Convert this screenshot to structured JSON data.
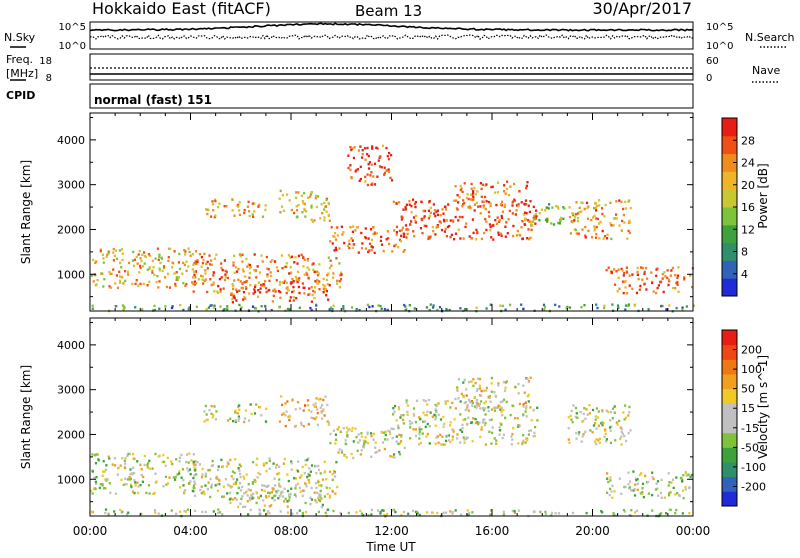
{
  "header": {
    "station": "Hokkaido East (fitACF)",
    "beam": "Beam 13",
    "date": "30/Apr/2017"
  },
  "top_panels": {
    "nsky_label": "N.Sky",
    "nsky_ticks": [
      "10^5",
      "10^0"
    ],
    "nsearch_label": "N.Search",
    "nsearch_ticks": [
      "10^5",
      "10^0"
    ],
    "freq_label": "Freq.",
    "freq_unit": "[MHz]",
    "freq_ticks": [
      "18",
      "8"
    ],
    "nave_label": "Nave",
    "nave_ticks": [
      "60",
      "0"
    ],
    "cpid_label": "CPID",
    "cpid_value": "normal (fast) 151"
  },
  "chart_data": [
    {
      "type": "heatmap",
      "title": "",
      "xlabel": "",
      "ylabel": "Slant Range [km]",
      "xlim": [
        0,
        24
      ],
      "ylim": [
        180,
        4600
      ],
      "y_ticks": [
        1000,
        2000,
        3000,
        4000
      ],
      "colorbar": {
        "label": "Power [dB]",
        "ticks": [
          "4",
          "8",
          "12",
          "16",
          "20",
          "24",
          "28"
        ],
        "colors": [
          "#1f2bd8",
          "#2f62b8",
          "#2f8f6a",
          "#3da23a",
          "#7ec43a",
          "#c8c832",
          "#f0b428",
          "#f08c1e",
          "#f05014",
          "#e81e14"
        ]
      },
      "scatter_regions": [
        {
          "t0": 0.0,
          "t1": 4.2,
          "r0": 700,
          "r1": 1600,
          "level": 0.65
        },
        {
          "t0": 4.0,
          "t1": 8.5,
          "r0": 600,
          "r1": 1500,
          "level": 0.75
        },
        {
          "t0": 5.5,
          "t1": 9.5,
          "r0": 400,
          "r1": 900,
          "level": 0.85
        },
        {
          "t0": 8.5,
          "t1": 10.0,
          "r0": 700,
          "r1": 1400,
          "level": 0.7
        },
        {
          "t0": 9.5,
          "t1": 12.5,
          "r0": 1500,
          "r1": 2100,
          "level": 0.85
        },
        {
          "t0": 10.2,
          "t1": 12.0,
          "r0": 3000,
          "r1": 3900,
          "level": 0.9
        },
        {
          "t0": 12.0,
          "t1": 17.8,
          "r0": 1800,
          "r1": 2700,
          "level": 0.9
        },
        {
          "t0": 14.5,
          "t1": 17.5,
          "r0": 2500,
          "r1": 3100,
          "level": 0.8
        },
        {
          "t0": 17.5,
          "t1": 19.2,
          "r0": 2100,
          "r1": 2600,
          "level": 0.5
        },
        {
          "t0": 19.0,
          "t1": 21.5,
          "r0": 1800,
          "r1": 2700,
          "level": 0.7
        },
        {
          "t0": 20.5,
          "t1": 24.0,
          "r0": 600,
          "r1": 1200,
          "level": 0.8
        },
        {
          "t0": 0.0,
          "t1": 24.0,
          "r0": 200,
          "r1": 350,
          "level": 0.3
        },
        {
          "t0": 7.5,
          "t1": 9.5,
          "r0": 2200,
          "r1": 2900,
          "level": 0.6
        },
        {
          "t0": 4.5,
          "t1": 7.0,
          "r0": 2300,
          "r1": 2700,
          "level": 0.7
        }
      ]
    },
    {
      "type": "heatmap",
      "title": "",
      "xlabel": "Time UT",
      "ylabel": "Slant Range [km]",
      "xlim": [
        0,
        24
      ],
      "ylim": [
        180,
        4600
      ],
      "y_ticks": [
        1000,
        2000,
        3000,
        4000
      ],
      "x_ticks": [
        "00:00",
        "04:00",
        "08:00",
        "12:00",
        "16:00",
        "20:00",
        "00:00"
      ],
      "colorbar": {
        "label": "Velocity [m s^-1]",
        "ticks": [
          "200",
          "100",
          "50",
          "15",
          "-15",
          "-50",
          "-100",
          "-200"
        ],
        "colors": [
          "#1f2bd8",
          "#2f62b8",
          "#2f8f6a",
          "#3da23a",
          "#7ec43a",
          "#c0c0c0",
          "#c0c0c0",
          "#f0c828",
          "#f0a01e",
          "#f07814",
          "#f04614",
          "#e81e14"
        ]
      },
      "scatter_regions": [
        {
          "t0": 0.0,
          "t1": 4.2,
          "r0": 700,
          "r1": 1600,
          "level": 0.5
        },
        {
          "t0": 4.0,
          "t1": 9.8,
          "r0": 600,
          "r1": 1500,
          "level": 0.5
        },
        {
          "t0": 5.5,
          "t1": 9.5,
          "r0": 400,
          "r1": 900,
          "level": 0.5
        },
        {
          "t0": 9.5,
          "t1": 12.5,
          "r0": 1500,
          "r1": 2200,
          "level": 0.5
        },
        {
          "t0": 12.0,
          "t1": 17.8,
          "r0": 1800,
          "r1": 2800,
          "level": 0.5
        },
        {
          "t0": 14.5,
          "t1": 17.5,
          "r0": 2600,
          "r1": 3300,
          "level": 0.55
        },
        {
          "t0": 19.0,
          "t1": 21.5,
          "r0": 1800,
          "r1": 2700,
          "level": 0.5
        },
        {
          "t0": 20.5,
          "t1": 24.0,
          "r0": 600,
          "r1": 1200,
          "level": 0.5
        },
        {
          "t0": 7.5,
          "t1": 9.5,
          "r0": 2200,
          "r1": 2900,
          "level": 0.65
        },
        {
          "t0": 0.0,
          "t1": 24.0,
          "r0": 200,
          "r1": 350,
          "level": 0.45
        },
        {
          "t0": 4.5,
          "t1": 7.0,
          "r0": 2300,
          "r1": 2700,
          "level": 0.5
        }
      ]
    }
  ]
}
